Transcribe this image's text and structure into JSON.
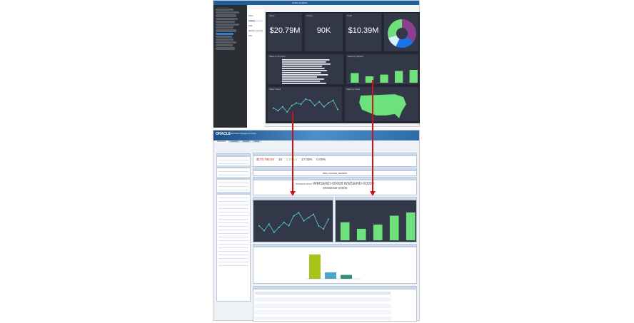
{
  "top": {
    "window_title": "Oracle Analytics",
    "nav_items": [
      "Home",
      "Catalog",
      "Data",
      "Machine Learning",
      "Jobs"
    ],
    "tiles": [
      {
        "label": "Sales",
        "value": "$20.79M"
      },
      {
        "label": "Orders",
        "value": "90K"
      },
      {
        "label": "Profit",
        "value": "$10.39M"
      }
    ],
    "donut": {
      "slices": [
        35,
        22,
        13,
        30
      ],
      "colors": [
        "#8a3f8f",
        "#1a73e8",
        "#d4f4fb",
        "#6ee07c"
      ]
    },
    "bar_list_title": "Sales by Product",
    "bar_list": [
      95,
      88,
      97,
      80,
      85,
      90,
      78,
      92,
      70,
      84,
      76,
      88
    ],
    "column_title": "Sales by Region",
    "columns": [
      45,
      30,
      38,
      55,
      60
    ],
    "line_title": "Sales Trend",
    "line": [
      40,
      30,
      45,
      25,
      50,
      60,
      55,
      75,
      70,
      50,
      65,
      45,
      60,
      70,
      35
    ],
    "map_title": "Sales by State",
    "colors": {
      "tile": "#333849",
      "accent": "#6ee07c"
    }
  },
  "bottom": {
    "brand": "ORACLE",
    "brand_sub": "Warehouse Management Cloud",
    "tabs": [
      "Dashboard",
      "Inventory",
      "Reports",
      "Setup"
    ],
    "kpis": [
      {
        "value": "$170,760.04",
        "color": "#d0121b"
      },
      {
        "value": "15",
        "color": "#333"
      },
      {
        "value": "1,575.6",
        "color": "#6fbf1a"
      },
      {
        "value": "17.03%",
        "color": "#333"
      },
      {
        "value": "0.00%",
        "color": "#333"
      }
    ],
    "selected_wave": "WRS_CHANGE_30102022",
    "cloud": [
      "WMSEND-00007",
      "WMSEND-00008",
      "WMSEND-00009",
      "WMSEND-00008"
    ],
    "line": [
      40,
      25,
      45,
      20,
      35,
      50,
      40,
      70,
      80,
      55,
      65,
      75,
      40,
      30,
      60
    ],
    "columns": [
      55,
      35,
      48,
      75,
      85
    ],
    "stacked": [
      95,
      25,
      15
    ],
    "colors": {
      "header": "#2b6ca8",
      "stacked_main": "#a8c41a"
    }
  }
}
